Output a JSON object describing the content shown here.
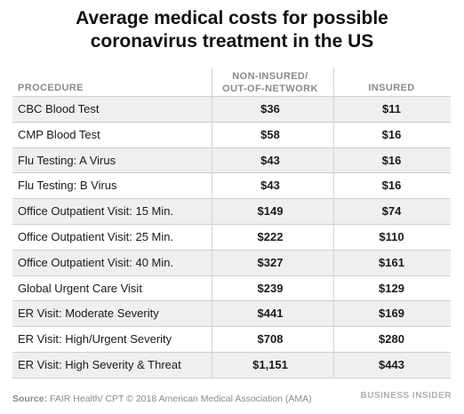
{
  "chart_data": {
    "type": "table",
    "title": "Average medical costs for possible coronavirus treatment in the US",
    "columns": [
      "PROCEDURE",
      "NON-INSURED/ OUT-OF-NETWORK",
      "INSURED"
    ],
    "rows": [
      {
        "procedure": "CBC Blood Test",
        "non_insured": "$36",
        "insured": "$11"
      },
      {
        "procedure": "CMP Blood Test",
        "non_insured": "$58",
        "insured": "$16"
      },
      {
        "procedure": "Flu Testing: A Virus",
        "non_insured": "$43",
        "insured": "$16"
      },
      {
        "procedure": "Flu Testing: B Virus",
        "non_insured": "$43",
        "insured": "$16"
      },
      {
        "procedure": "Office Outpatient Visit: 15 Min.",
        "non_insured": "$149",
        "insured": "$74"
      },
      {
        "procedure": "Office Outpatient Visit: 25 Min.",
        "non_insured": "$222",
        "insured": "$110"
      },
      {
        "procedure": "Office Outpatient Visit: 40 Min.",
        "non_insured": "$327",
        "insured": "$161"
      },
      {
        "procedure": "Global Urgent Care Visit",
        "non_insured": "$239",
        "insured": "$129"
      },
      {
        "procedure": "ER Visit: Moderate Severity",
        "non_insured": "$441",
        "insured": "$169"
      },
      {
        "procedure": "ER Visit: High/Urgent Severity",
        "non_insured": "$708",
        "insured": "$280"
      },
      {
        "procedure": "ER Visit: High Severity & Threat",
        "non_insured": "$1,151",
        "insured": "$443"
      }
    ]
  },
  "header": {
    "title_line1": "Average medical costs for possible",
    "title_line2": "coronavirus treatment in the US",
    "col_procedure": "PROCEDURE",
    "col_non_line1": "NON-INSURED/",
    "col_non_line2": "OUT-OF-NETWORK",
    "col_insured": "INSURED"
  },
  "footer": {
    "source_label": "Source:",
    "source_text": " FAIR Health/ CPT © 2018 American Medical Association (AMA)",
    "brand": "BUSINESS INSIDER"
  }
}
